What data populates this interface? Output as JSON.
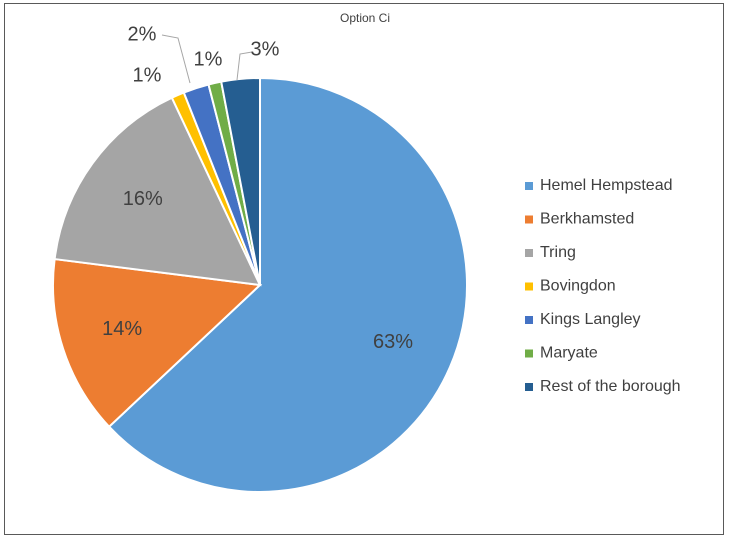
{
  "chart_data": {
    "type": "pie",
    "title": "Option Ci",
    "categories": [
      "Hemel Hempstead",
      "Berkhamsted",
      "Tring",
      "Bovingdon",
      "Kings Langley",
      "Maryate",
      "Rest of the borough"
    ],
    "values": [
      63,
      14,
      16,
      1,
      2,
      1,
      3
    ],
    "value_labels": [
      "63%",
      "14%",
      "16%",
      "1%",
      "2%",
      "1%",
      "3%"
    ],
    "colors": [
      "#5b9bd5",
      "#ed7d31",
      "#a5a5a5",
      "#ffc000",
      "#4472c4",
      "#70ad47",
      "#255e91"
    ],
    "legend": "right"
  }
}
